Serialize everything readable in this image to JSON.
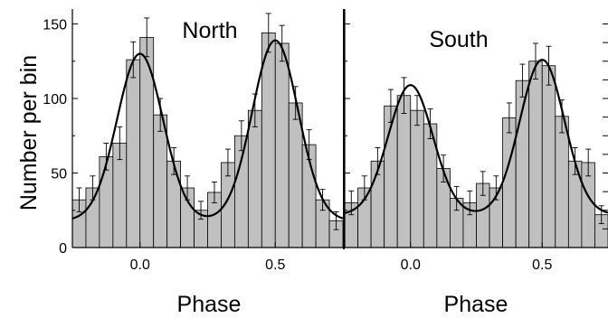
{
  "chart_data": {
    "type": "bar",
    "ylabel": "Number per bin",
    "ylim": [
      0,
      160
    ],
    "yticks": [
      0,
      50,
      100,
      150
    ],
    "xticks": [
      0.0,
      0.5
    ],
    "xtick_labels": [
      "0.0",
      "0.5"
    ],
    "bar_color": "#c0c0c0",
    "fit_color": "#000000",
    "panels": [
      {
        "title": "North",
        "xlabel": "Phase",
        "xlim": [
          -0.25,
          0.75
        ],
        "bin_width": 0.05,
        "x": [
          -0.225,
          -0.175,
          -0.125,
          -0.075,
          -0.025,
          0.025,
          0.075,
          0.125,
          0.175,
          0.225,
          0.275,
          0.325,
          0.375,
          0.425,
          0.475,
          0.525,
          0.575,
          0.625,
          0.675,
          0.725
        ],
        "values": [
          32,
          40,
          61,
          70,
          126,
          141,
          89,
          58,
          40,
          25,
          37,
          57,
          75,
          92,
          144,
          137,
          97,
          69,
          32,
          18
        ],
        "errors": [
          8,
          8,
          9,
          11,
          12,
          13,
          11,
          9,
          8,
          6,
          7,
          9,
          10,
          11,
          13,
          12,
          11,
          10,
          7,
          6
        ],
        "fit": {
          "base": 18,
          "peaks": [
            [
              0.0,
              112
            ],
            [
              0.5,
              121
            ]
          ],
          "sigma": 0.085
        }
      },
      {
        "title": "South",
        "xlabel": "Phase",
        "xlim": [
          -0.25,
          0.75
        ],
        "bin_width": 0.05,
        "x": [
          -0.225,
          -0.175,
          -0.125,
          -0.075,
          -0.025,
          0.025,
          0.075,
          0.125,
          0.175,
          0.225,
          0.275,
          0.325,
          0.375,
          0.425,
          0.475,
          0.525,
          0.575,
          0.625,
          0.675,
          0.725
        ],
        "values": [
          30,
          40,
          58,
          95,
          102,
          92,
          83,
          53,
          33,
          30,
          43,
          40,
          87,
          112,
          125,
          122,
          88,
          58,
          57,
          22
        ],
        "errors": [
          8,
          8,
          9,
          11,
          12,
          10,
          10,
          9,
          8,
          8,
          8,
          8,
          10,
          11,
          12,
          13,
          11,
          9,
          9,
          6
        ],
        "fit": {
          "base": 22,
          "peaks": [
            [
              0.0,
              87
            ],
            [
              0.5,
              104
            ]
          ],
          "sigma": 0.085
        }
      }
    ]
  }
}
